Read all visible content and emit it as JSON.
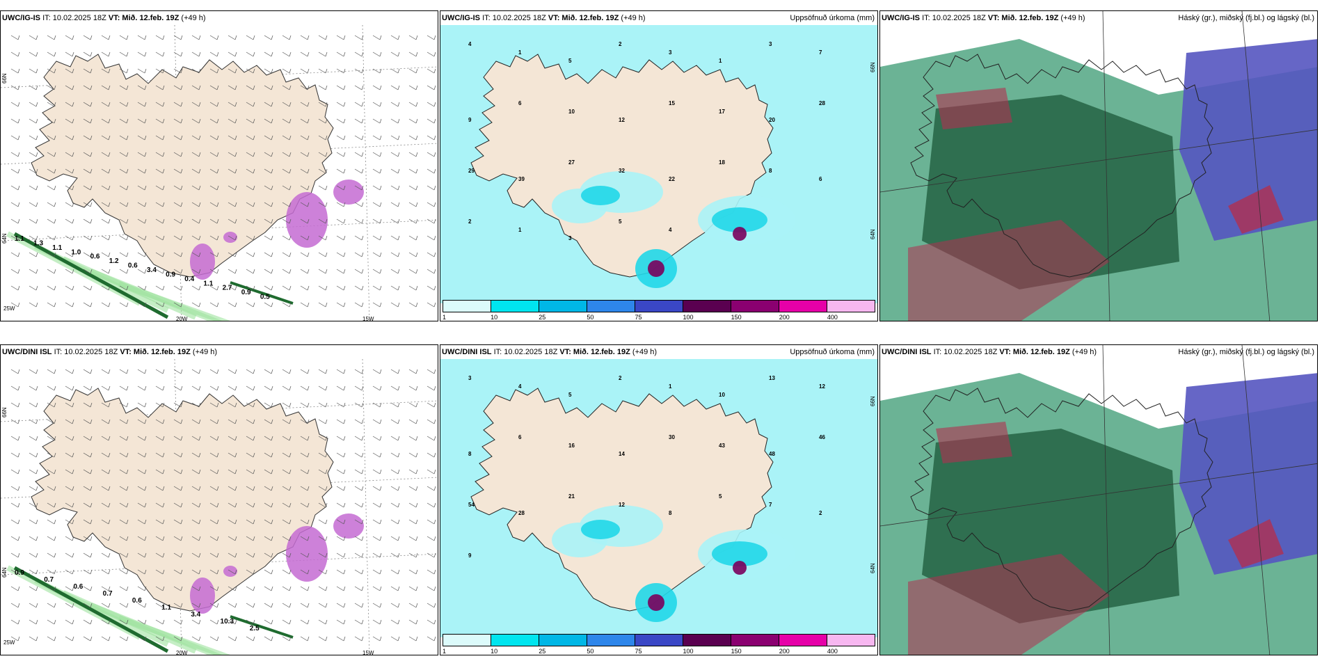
{
  "panels": [
    {
      "id": "a1",
      "model": "UWC/IG-IS",
      "it": "IT: 10.02.2025 18Z",
      "vt_label": "VT:",
      "vt": "Mið. 12.feb. 19Z",
      "lead": "(+49 h)",
      "right": "",
      "axis_labels": {
        "lat_top": "66N",
        "lat_mid": "64N",
        "lon_left": "25W",
        "lon_mid": "20W",
        "lon_right": "15W"
      }
    },
    {
      "id": "a2",
      "model": "UWC/IG-IS",
      "it": "IT: 10.02.2025 18Z",
      "vt_label": "VT:",
      "vt": "Mið. 12.feb. 19Z",
      "lead": "(+49 h)",
      "right": "Uppsöfnuð úrkoma (mm)",
      "axis_labels": {
        "lat_top": "66N",
        "lat_mid": "64N"
      }
    },
    {
      "id": "a3",
      "model": "UWC/IG-IS",
      "it": "IT: 10.02.2025 18Z",
      "vt_label": "VT:",
      "vt": "Mið. 12.feb. 19Z",
      "lead": "(+49 h)",
      "right": "Háský (gr.), miðský (fj.bl.) og lágský (bl.)"
    },
    {
      "id": "b1",
      "model": "UWC/DINI ISL",
      "it": "IT: 10.02.2025 18Z",
      "vt_label": "VT:",
      "vt": "Mið. 12.feb. 19Z",
      "lead": "(+49 h)",
      "right": "",
      "axis_labels": {
        "lat_top": "66N",
        "lat_mid": "64N",
        "lon_left": "25W",
        "lon_mid": "20W",
        "lon_right": "15W"
      }
    },
    {
      "id": "b2",
      "model": "UWC/DINI ISL",
      "it": "IT: 10.02.2025 18Z",
      "vt_label": "VT:",
      "vt": "Mið. 12.feb. 19Z",
      "lead": "(+49 h)",
      "right": "Uppsöfnuð úrkoma (mm)",
      "axis_labels": {
        "lat_top": "66N",
        "lat_mid": "64N"
      }
    },
    {
      "id": "b3",
      "model": "UWC/DINI ISL",
      "it": "IT: 10.02.2025 18Z",
      "vt_label": "VT:",
      "vt": "Mið. 12.feb. 19Z",
      "lead": "(+49 h)",
      "right": "Háský (gr.), miðský (fj.bl.) og lágský (bl.)"
    }
  ],
  "precip_colorbar": {
    "ticks": [
      "1",
      "10",
      "25",
      "50",
      "75",
      "100",
      "150",
      "200",
      "400"
    ],
    "colors": [
      "#dcfbfb",
      "#00e5ef",
      "#00b7e6",
      "#2e86ea",
      "#3a47c6",
      "#5a0050",
      "#8a0070",
      "#e600a8",
      "#f7b7f0"
    ]
  },
  "colors": {
    "land": "#f4e6d6",
    "sea": "#ffffff",
    "precip_light": "#aaf3f7",
    "precip_mid": "#21d7e8",
    "precip_heavy": "#7a005c",
    "snow": "#c46bd2",
    "rain": "#1f6b2f",
    "cloud_high": "#2c6b4c",
    "cloud_mid": "#5555c0",
    "cloud_low": "#b03050"
  },
  "labels_wind": {
    "a1": [
      "1.1",
      "1.3",
      "1.1",
      "1.0",
      "0.6",
      "1.2",
      "0.6",
      "3.4",
      "0.9",
      "0.4",
      "1.1",
      "2.7",
      "0.9",
      "0.5"
    ],
    "b1": [
      "0.9",
      "0.7",
      "0.6",
      "0.7",
      "0.6",
      "1.1",
      "3.4",
      "10.3",
      "2.5"
    ]
  },
  "labels_precip": {
    "a2": [
      "4",
      "1",
      "5",
      "2",
      "3",
      "1",
      "3",
      "7",
      "9",
      "6",
      "10",
      "12",
      "15",
      "17",
      "20",
      "28",
      "29",
      "39",
      "27",
      "32",
      "22",
      "18",
      "8",
      "6",
      "2",
      "1",
      "3",
      "5",
      "4"
    ],
    "b2": [
      "3",
      "4",
      "5",
      "2",
      "1",
      "10",
      "13",
      "12",
      "8",
      "6",
      "16",
      "14",
      "30",
      "43",
      "48",
      "46",
      "54",
      "28",
      "21",
      "12",
      "8",
      "5",
      "7",
      "2",
      "9"
    ]
  }
}
